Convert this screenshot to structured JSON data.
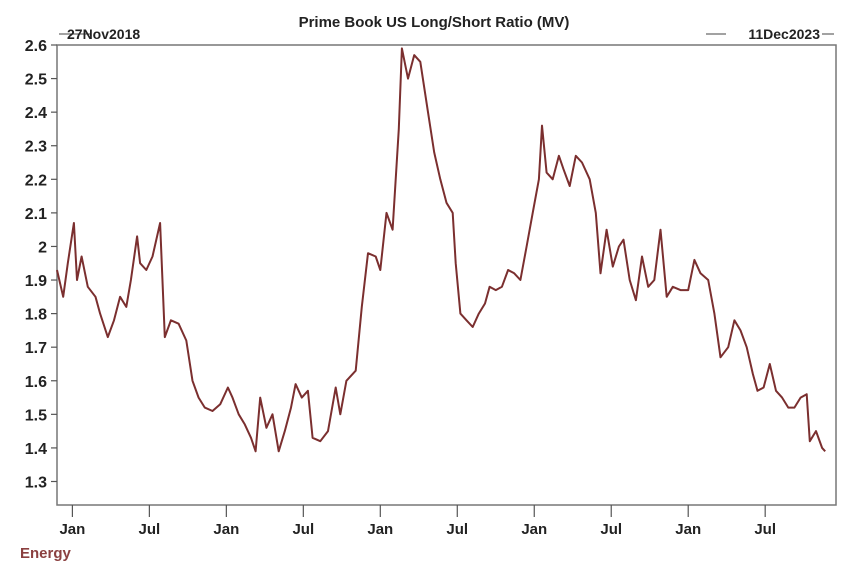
{
  "chart_data": {
    "type": "line",
    "title": "Prime Book US Long/Short Ratio (MV)",
    "start_label": "27Nov2018",
    "end_label": "11Dec2023",
    "legend": "Energy",
    "legend_placement": "bottom-left",
    "xlabel": "",
    "ylabel": "",
    "xlim": [
      2018.9,
      2023.96
    ],
    "ylim": [
      1.23,
      2.6
    ],
    "yticks": [
      2.6,
      2.5,
      2.4,
      2.3,
      2.2,
      2.1,
      2.0,
      1.9,
      1.8,
      1.7,
      1.6,
      1.5,
      1.4,
      1.3
    ],
    "ytick_labels": [
      "2.6",
      "2.5",
      "2.4",
      "2.3",
      "2.2",
      "2.1",
      "2",
      "1.9",
      "1.8",
      "1.7",
      "1.6",
      "1.5",
      "1.4",
      "1.3"
    ],
    "xticks": [
      2019.0,
      2019.5,
      2020.0,
      2020.5,
      2021.0,
      2021.5,
      2022.0,
      2022.5,
      2023.0,
      2023.5
    ],
    "xtick_labels": [
      "Jan",
      "Jul",
      "Jan",
      "Jul",
      "Jan",
      "Jul",
      "Jan",
      "Jul",
      "Jan",
      "Jul"
    ],
    "grid": false,
    "series": [
      {
        "name": "Energy",
        "color": "#7b2f2f",
        "x": [
          2018.9,
          2018.94,
          2018.97,
          2019.01,
          2019.03,
          2019.06,
          2019.1,
          2019.15,
          2019.18,
          2019.23,
          2019.27,
          2019.31,
          2019.35,
          2019.38,
          2019.42,
          2019.44,
          2019.48,
          2019.52,
          2019.57,
          2019.6,
          2019.64,
          2019.69,
          2019.74,
          2019.78,
          2019.82,
          2019.86,
          2019.91,
          2019.96,
          2020.01,
          2020.04,
          2020.08,
          2020.12,
          2020.16,
          2020.19,
          2020.22,
          2020.26,
          2020.3,
          2020.34,
          2020.38,
          2020.42,
          2020.45,
          2020.49,
          2020.53,
          2020.56,
          2020.61,
          2020.66,
          2020.71,
          2020.74,
          2020.78,
          2020.84,
          2020.88,
          2020.92,
          2020.97,
          2021.0,
          2021.04,
          2021.08,
          2021.12,
          2021.14,
          2021.18,
          2021.22,
          2021.26,
          2021.31,
          2021.35,
          2021.39,
          2021.43,
          2021.47,
          2021.49,
          2021.52,
          2021.56,
          2021.6,
          2021.64,
          2021.68,
          2021.71,
          2021.75,
          2021.79,
          2021.83,
          2021.87,
          2021.91,
          2021.95,
          2021.99,
          2022.03,
          2022.05,
          2022.08,
          2022.12,
          2022.16,
          2022.19,
          2022.23,
          2022.27,
          2022.31,
          2022.36,
          2022.4,
          2022.43,
          2022.47,
          2022.51,
          2022.55,
          2022.58,
          2022.62,
          2022.66,
          2022.7,
          2022.74,
          2022.78,
          2022.82,
          2022.86,
          2022.9,
          2022.95,
          2023.0,
          2023.04,
          2023.08,
          2023.13,
          2023.17,
          2023.21,
          2023.26,
          2023.3,
          2023.34,
          2023.38,
          2023.42,
          2023.45,
          2023.49,
          2023.53,
          2023.57,
          2023.61,
          2023.65,
          2023.69,
          2023.73,
          2023.77,
          2023.79,
          2023.83,
          2023.87,
          2023.89
        ],
        "y": [
          1.93,
          1.85,
          1.95,
          2.07,
          1.9,
          1.97,
          1.88,
          1.85,
          1.8,
          1.73,
          1.78,
          1.85,
          1.82,
          1.9,
          2.03,
          1.95,
          1.93,
          1.97,
          2.07,
          1.73,
          1.78,
          1.77,
          1.72,
          1.6,
          1.55,
          1.52,
          1.51,
          1.53,
          1.58,
          1.55,
          1.5,
          1.47,
          1.43,
          1.39,
          1.55,
          1.46,
          1.5,
          1.39,
          1.45,
          1.52,
          1.59,
          1.55,
          1.57,
          1.43,
          1.42,
          1.45,
          1.58,
          1.5,
          1.6,
          1.63,
          1.82,
          1.98,
          1.97,
          1.93,
          2.1,
          2.05,
          2.35,
          2.59,
          2.5,
          2.57,
          2.55,
          2.4,
          2.28,
          2.2,
          2.13,
          2.1,
          1.95,
          1.8,
          1.78,
          1.76,
          1.8,
          1.83,
          1.88,
          1.87,
          1.88,
          1.93,
          1.92,
          1.9,
          2.0,
          2.1,
          2.2,
          2.36,
          2.22,
          2.2,
          2.27,
          2.23,
          2.18,
          2.27,
          2.25,
          2.2,
          2.1,
          1.92,
          2.05,
          1.94,
          2.0,
          2.02,
          1.9,
          1.84,
          1.97,
          1.88,
          1.9,
          2.05,
          1.85,
          1.88,
          1.87,
          1.87,
          1.96,
          1.92,
          1.9,
          1.8,
          1.67,
          1.7,
          1.78,
          1.75,
          1.7,
          1.62,
          1.57,
          1.58,
          1.65,
          1.57,
          1.55,
          1.52,
          1.52,
          1.55,
          1.56,
          1.42,
          1.45,
          1.4,
          1.39
        ]
      }
    ]
  }
}
